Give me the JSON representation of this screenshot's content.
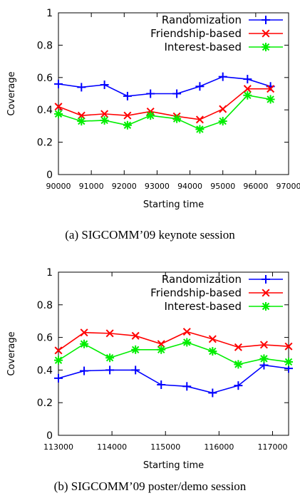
{
  "chart_data": [
    {
      "type": "line",
      "caption": "(a) SIGCOMM’09 keynote session",
      "xlabel": "Starting time",
      "ylabel": "Coverage",
      "xlim": [
        90000,
        97000
      ],
      "ylim": [
        0,
        1
      ],
      "xticks": [
        "90000",
        "91000",
        "92000",
        "93000",
        "94000",
        "95000",
        "96000",
        "97000"
      ],
      "yticks": [
        "0",
        "0.2",
        "0.4",
        "0.6",
        "0.8",
        "1"
      ],
      "legend_position": "top-right",
      "x": [
        90000,
        90700,
        91400,
        92100,
        92800,
        93600,
        94300,
        95000,
        95750,
        96450
      ],
      "series": [
        {
          "name": "Randomization",
          "color": "#0000ff",
          "marker": "plus",
          "values": [
            0.56,
            0.54,
            0.555,
            0.485,
            0.5,
            0.5,
            0.545,
            0.605,
            0.59,
            0.545
          ]
        },
        {
          "name": "Friendship-based",
          "color": "#ff0000",
          "marker": "x",
          "values": [
            0.42,
            0.365,
            0.375,
            0.365,
            0.39,
            0.36,
            0.34,
            0.405,
            0.53,
            0.53
          ]
        },
        {
          "name": "Interest-based",
          "color": "#00ee00",
          "marker": "star",
          "values": [
            0.375,
            0.33,
            0.335,
            0.305,
            0.365,
            0.345,
            0.28,
            0.33,
            0.49,
            0.465
          ]
        }
      ]
    },
    {
      "type": "line",
      "caption": "(b) SIGCOMM’09 poster/demo session",
      "xlabel": "Starting time",
      "ylabel": "Coverage",
      "xlim": [
        113000,
        117300
      ],
      "ylim": [
        0,
        1
      ],
      "xticks": [
        "113000",
        "114000",
        "115000",
        "116000",
        "117000"
      ],
      "yticks": [
        "0",
        "0.2",
        "0.4",
        "0.6",
        "0.8",
        "1"
      ],
      "legend_position": "top-right",
      "x": [
        113000,
        113480,
        113960,
        114440,
        114920,
        115400,
        115880,
        116360,
        116840,
        117300
      ],
      "series": [
        {
          "name": "Randomization",
          "color": "#0000ff",
          "marker": "plus",
          "values": [
            0.35,
            0.395,
            0.4,
            0.4,
            0.31,
            0.3,
            0.26,
            0.305,
            0.43,
            0.41
          ]
        },
        {
          "name": "Friendship-based",
          "color": "#ff0000",
          "marker": "x",
          "values": [
            0.52,
            0.63,
            0.625,
            0.61,
            0.56,
            0.635,
            0.59,
            0.54,
            0.555,
            0.545
          ]
        },
        {
          "name": "Interest-based",
          "color": "#00ee00",
          "marker": "star",
          "values": [
            0.46,
            0.56,
            0.475,
            0.525,
            0.525,
            0.57,
            0.515,
            0.435,
            0.47,
            0.45
          ]
        }
      ]
    }
  ]
}
